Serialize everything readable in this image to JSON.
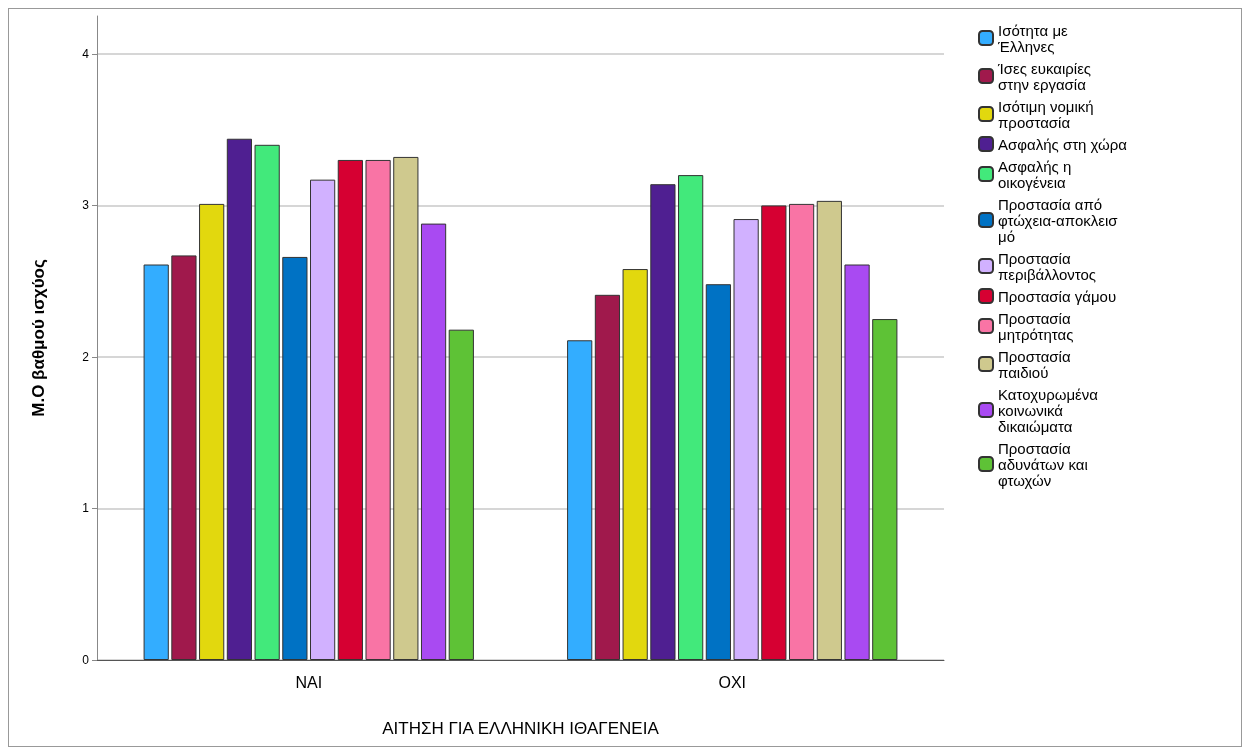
{
  "chart_data": {
    "type": "bar",
    "xlabel": "ΑΙΤΗΣΗ ΓΙΑ ΕΛΛΗΝΙΚΗ ΙΘΑΓΕΝΕΙΑ",
    "ylabel": "Μ.Ο βαθμού ισχύος",
    "categories": [
      "ΝΑΙ",
      "ΟΧΙ"
    ],
    "series": [
      {
        "name": "Ισότητα με Έλληνες",
        "color": "#33adff",
        "values": [
          2.61,
          2.11
        ]
      },
      {
        "name": "Ίσες ευκαιρίες στην εργασία",
        "color": "#a0194c",
        "values": [
          2.67,
          2.41
        ]
      },
      {
        "name": "Ισότιμη νομική προστασία",
        "color": "#e2d80e",
        "values": [
          3.01,
          2.58
        ]
      },
      {
        "name": "Ασφαλής στη χώρα",
        "color": "#4f1f91",
        "values": [
          3.44,
          3.14
        ]
      },
      {
        "name": "Ασφαλής η οικογένεια",
        "color": "#42e97b",
        "values": [
          3.4,
          3.2
        ]
      },
      {
        "name": "Προστασία από φτώχεια-αποκλεισμό",
        "color": "#0072c4",
        "values": [
          2.66,
          2.48
        ]
      },
      {
        "name": "Προστασία περιβάλλοντος",
        "color": "#d1b1ff",
        "values": [
          3.17,
          2.91
        ]
      },
      {
        "name": "Προστασία γάμου",
        "color": "#d60032",
        "values": [
          3.3,
          3.0
        ]
      },
      {
        "name": "Προστασία μητρότητας",
        "color": "#f974a5",
        "values": [
          3.3,
          3.01
        ]
      },
      {
        "name": "Προστασία παιδιού",
        "color": "#cfc98e",
        "values": [
          3.32,
          3.03
        ]
      },
      {
        "name": "Κατοχυρωμένα κοινωνικά δικαιώματα",
        "color": "#a94af2",
        "values": [
          2.88,
          2.61
        ]
      },
      {
        "name": "Προστασία αδυνάτων και φτωχών",
        "color": "#5ec236",
        "values": [
          2.18,
          2.25
        ]
      }
    ],
    "ylim": [
      0,
      4.25
    ],
    "yticks": [
      0,
      1,
      2,
      3,
      4
    ],
    "grid": "y",
    "legend": "right"
  }
}
